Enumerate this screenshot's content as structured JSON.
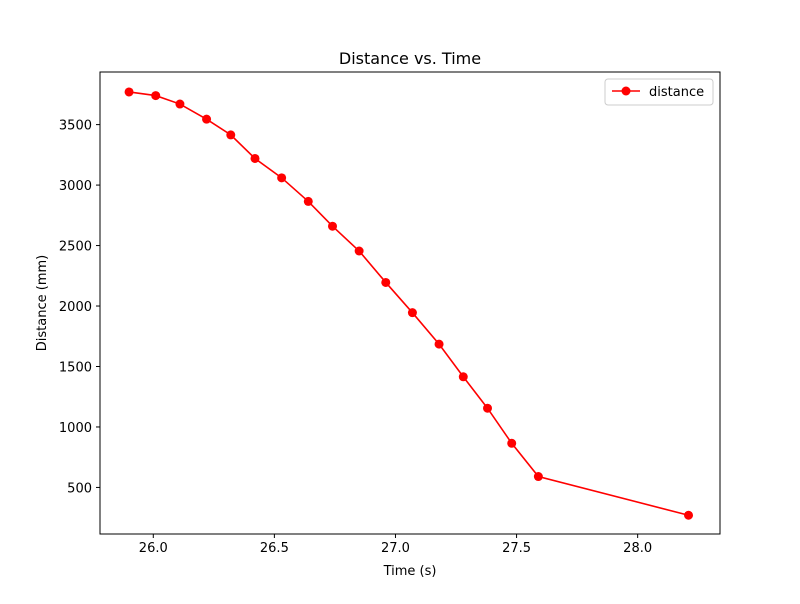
{
  "chart_data": {
    "type": "line",
    "title": "Distance vs. Time",
    "xlabel": "Time (s)",
    "ylabel": "Distance (mm)",
    "xlim": [
      25.78,
      28.34
    ],
    "ylim": [
      115,
      3935
    ],
    "xticks": [
      26.0,
      26.5,
      27.0,
      27.5,
      28.0
    ],
    "xtick_labels": [
      "26.0",
      "26.5",
      "27.0",
      "27.5",
      "28.0"
    ],
    "yticks": [
      500,
      1000,
      1500,
      2000,
      2500,
      3000,
      3500
    ],
    "ytick_labels": [
      "500",
      "1000",
      "1500",
      "2000",
      "2500",
      "3000",
      "3500"
    ],
    "grid": false,
    "legend": "upper-right",
    "series": [
      {
        "name": "distance",
        "color": "#ff0000",
        "marker": "circle",
        "x": [
          25.9,
          26.01,
          26.11,
          26.22,
          26.32,
          26.42,
          26.53,
          26.64,
          26.74,
          26.85,
          26.96,
          27.07,
          27.18,
          27.28,
          27.38,
          27.48,
          27.59,
          28.21
        ],
        "y": [
          3770,
          3740,
          3670,
          3545,
          3415,
          3220,
          3060,
          2865,
          2660,
          2455,
          2195,
          1945,
          1685,
          1415,
          1155,
          865,
          590,
          270
        ]
      }
    ]
  }
}
